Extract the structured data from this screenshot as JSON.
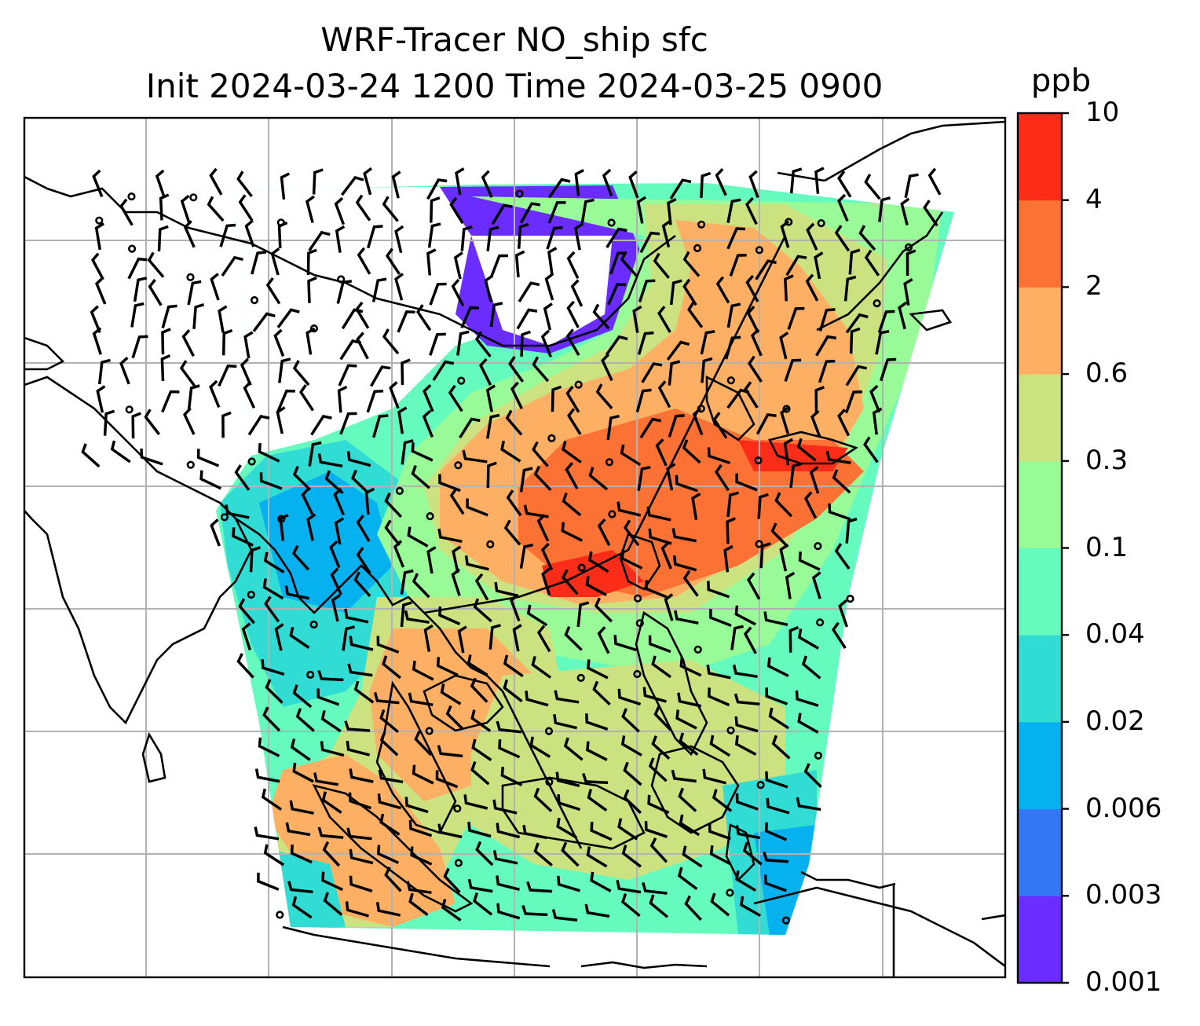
{
  "title": {
    "line1": "WRF-Tracer NO_ship sfc",
    "line2": "Init 2024-03-24 1200 Time 2024-03-25 0900"
  },
  "colorbar": {
    "unit": "ppb",
    "levels": [
      "0.001",
      "0.003",
      "0.006",
      "0.02",
      "0.04",
      "0.1",
      "0.3",
      "0.6",
      "2",
      "4",
      "10"
    ],
    "colors": [
      "#6a2cff",
      "#3477f5",
      "#05b1ef",
      "#30dcd4",
      "#66fbbe",
      "#98fb98",
      "#cce180",
      "#fdb063",
      "#fc7134",
      "#fc2d18"
    ]
  },
  "map": {
    "gridlines": true,
    "gridline_color": "#b2b2b2",
    "coastline_color": "#000000",
    "field": "NO_ship surface concentration",
    "overlay": "wind barbs",
    "calm_marker": "circle"
  }
}
